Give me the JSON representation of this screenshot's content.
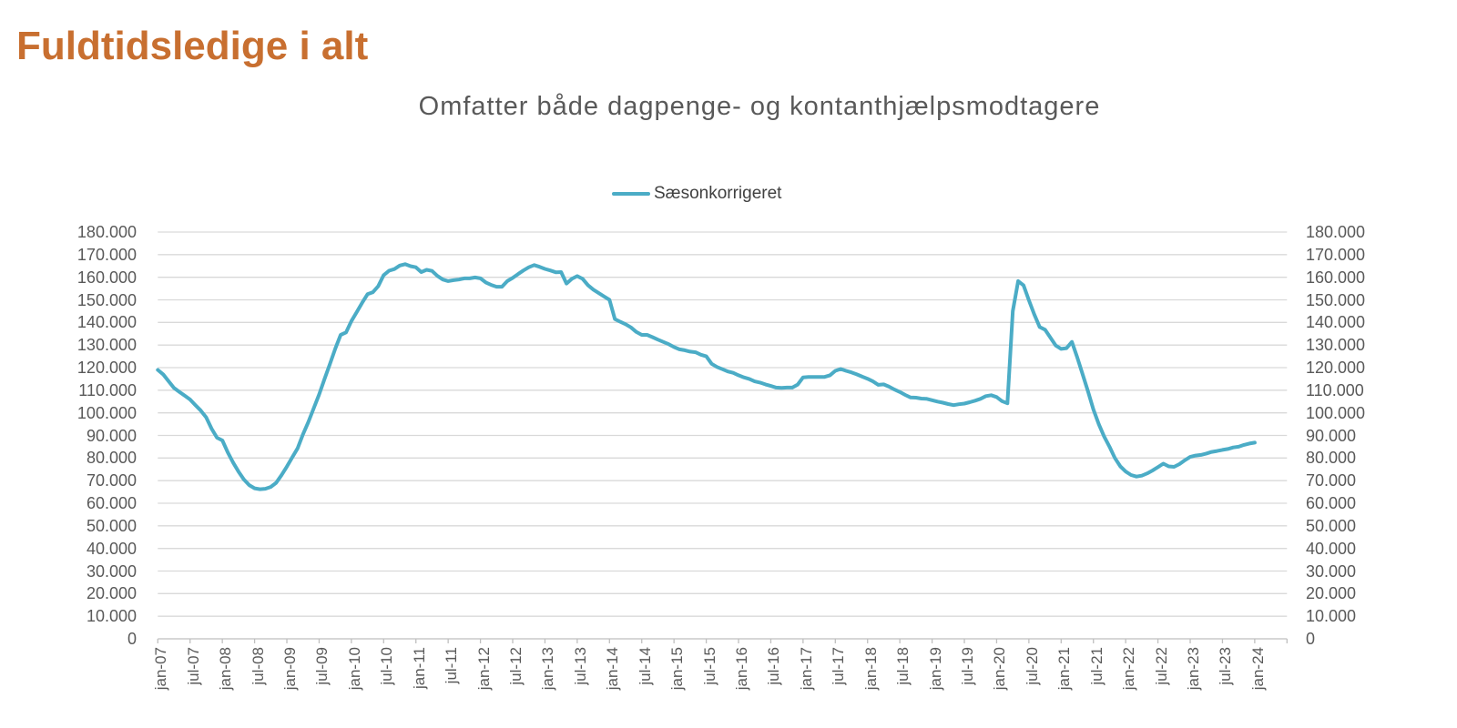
{
  "page_title": "Fuldtidsledige i alt",
  "chart": {
    "title": "Omfatter både dagpenge- og kontanthjælpsmodtagere",
    "legend_label": "Sæsonkorrigeret"
  },
  "colors": {
    "title": "#C86F30",
    "line": "#4BACC6",
    "grid": "#D9D9D9",
    "axis": "#BFBFBF",
    "label": "#595959"
  },
  "chart_data": {
    "type": "line",
    "title": "Omfatter både dagpenge- og kontanthjælpsmodtagere",
    "x_start": "2007-01",
    "x_end": "2024-01",
    "x_frequency": "monthly",
    "x_tick_labels": [
      "jan-07",
      "jul-07",
      "jan-08",
      "jul-08",
      "jan-09",
      "jul-09",
      "jan-10",
      "jul-10",
      "jan-11",
      "jul-11",
      "jan-12",
      "jul-12",
      "jan-13",
      "jul-13",
      "jan-14",
      "jul-14",
      "jan-15",
      "jul-15",
      "jan-16",
      "jul-16",
      "jan-17",
      "jul-17",
      "jan-18",
      "jul-18",
      "jan-19",
      "jul-19",
      "jan-20",
      "jul-20",
      "jan-21",
      "jul-21",
      "jan-22",
      "jul-22",
      "jan-23",
      "jul-23",
      "jan-24"
    ],
    "ylim": [
      0,
      180000
    ],
    "y_tick_step": 10000,
    "y_tick_labels": [
      "0",
      "10.000",
      "20.000",
      "30.000",
      "40.000",
      "50.000",
      "60.000",
      "70.000",
      "80.000",
      "90.000",
      "100.000",
      "110.000",
      "120.000",
      "130.000",
      "140.000",
      "150.000",
      "160.000",
      "170.000",
      "180.000"
    ],
    "grid": true,
    "legend_position": "top",
    "series": [
      {
        "name": "Sæsonkorrigeret",
        "values": [
          119000,
          117000,
          114000,
          111000,
          109300,
          107600,
          105900,
          103400,
          101000,
          98000,
          93000,
          89000,
          87800,
          82500,
          78000,
          74000,
          70500,
          68000,
          66600,
          66200,
          66400,
          67200,
          69000,
          72400,
          76200,
          80300,
          84300,
          90500,
          95900,
          102000,
          108100,
          114900,
          121600,
          128400,
          134500,
          135600,
          140600,
          144600,
          148700,
          152500,
          153400,
          156100,
          160900,
          162900,
          163600,
          165200,
          165800,
          164900,
          164400,
          162300,
          163300,
          162800,
          160600,
          159000,
          158300,
          158700,
          159000,
          159500,
          159500,
          159900,
          159500,
          157700,
          156600,
          155800,
          155800,
          158300,
          159700,
          161400,
          163000,
          164400,
          165400,
          164600,
          163700,
          163000,
          162200,
          162300,
          157200,
          159300,
          160500,
          159300,
          156500,
          154500,
          153000,
          151500,
          150000,
          141500,
          140300,
          139200,
          137800,
          135800,
          134500,
          134500,
          133500,
          132400,
          131400,
          130400,
          129100,
          128100,
          127700,
          127100,
          126800,
          125700,
          125000,
          121700,
          120300,
          119300,
          118300,
          117700,
          116600,
          115700,
          115000,
          113900,
          113400,
          112600,
          111900,
          111200,
          111000,
          111200,
          111200,
          112500,
          115700,
          115900,
          115900,
          115900,
          115900,
          116600,
          118600,
          119400,
          118600,
          117900,
          117000,
          116000,
          115100,
          113900,
          112400,
          112600,
          111600,
          110300,
          109200,
          107900,
          106800,
          106700,
          106300,
          106200,
          105600,
          105000,
          104500,
          103900,
          103400,
          103800,
          104100,
          104700,
          105400,
          106200,
          107400,
          107800,
          107000,
          105200,
          104200,
          145000,
          158300,
          156400,
          149800,
          143500,
          138000,
          136800,
          133300,
          129800,
          128300,
          128600,
          131400,
          124500,
          117000,
          109500,
          101500,
          95000,
          89500,
          85000,
          80000,
          76300,
          74000,
          72500,
          71800,
          72200,
          73200,
          74500,
          76000,
          77500,
          76300,
          76100,
          77300,
          79000,
          80500,
          81100,
          81400,
          82000,
          82700,
          83100,
          83600,
          84000,
          84700,
          85000,
          85800,
          86400,
          86800
        ]
      }
    ]
  }
}
